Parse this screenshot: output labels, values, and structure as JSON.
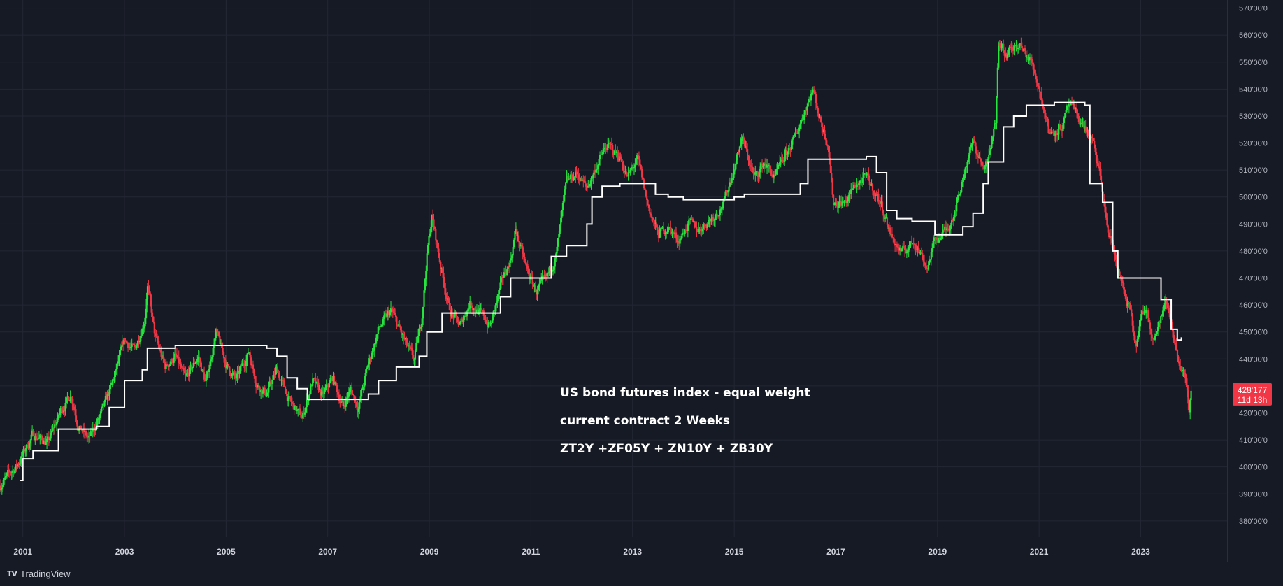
{
  "colors": {
    "background": "#161a25",
    "grid": "#232734",
    "up": "#27e53f",
    "down": "#f23645",
    "stop_line": "#ffffff",
    "axis_text": "#b2b5be",
    "price_tag": "#f23645"
  },
  "annotations": [
    "US bond futures index - equal weight",
    "current contract 2 Weeks",
    "ZT2Y +ZF05Y + ZN10Y + ZB30Y"
  ],
  "price_tag": {
    "value": "428'177",
    "countdown": "11d 13h"
  },
  "footer": {
    "icon": "tradingview-logo-icon",
    "brand_icon_text": "TV",
    "brand": "TradingView"
  },
  "chart_data": {
    "type": "candlestick",
    "title": "",
    "xlabel": "",
    "ylabel": "",
    "x_range": [
      2000.55,
      2024.7
    ],
    "ylim": [
      374,
      573
    ],
    "grid": true,
    "y_ticks": [
      {
        "value": 380,
        "label": "380'00'0"
      },
      {
        "value": 390,
        "label": "390'00'0"
      },
      {
        "value": 400,
        "label": "400'00'0"
      },
      {
        "value": 410,
        "label": "410'00'0"
      },
      {
        "value": 420,
        "label": "420'00'0"
      },
      {
        "value": 430,
        "label": "430'00'0"
      },
      {
        "value": 440,
        "label": "440'00'0"
      },
      {
        "value": 450,
        "label": "450'00'0"
      },
      {
        "value": 460,
        "label": "460'00'0"
      },
      {
        "value": 470,
        "label": "470'00'0"
      },
      {
        "value": 480,
        "label": "480'00'0"
      },
      {
        "value": 490,
        "label": "490'00'0"
      },
      {
        "value": 500,
        "label": "500'00'0"
      },
      {
        "value": 510,
        "label": "510'00'0"
      },
      {
        "value": 520,
        "label": "520'00'0"
      },
      {
        "value": 530,
        "label": "530'00'0"
      },
      {
        "value": 540,
        "label": "540'00'0"
      },
      {
        "value": 550,
        "label": "550'00'0"
      },
      {
        "value": 560,
        "label": "560'00'0"
      },
      {
        "value": 570,
        "label": "570'00'0"
      }
    ],
    "x_ticks": [
      {
        "value": 2001,
        "label": "2001"
      },
      {
        "value": 2003,
        "label": "2003"
      },
      {
        "value": 2005,
        "label": "2005"
      },
      {
        "value": 2007,
        "label": "2007"
      },
      {
        "value": 2009,
        "label": "2009"
      },
      {
        "value": 2011,
        "label": "2011"
      },
      {
        "value": 2013,
        "label": "2013"
      },
      {
        "value": 2015,
        "label": "2015"
      },
      {
        "value": 2017,
        "label": "2017"
      },
      {
        "value": 2019,
        "label": "2019"
      },
      {
        "value": 2021,
        "label": "2021"
      },
      {
        "value": 2023,
        "label": "2023"
      }
    ],
    "price_path": [
      [
        2000.55,
        393
      ],
      [
        2000.9,
        401
      ],
      [
        2001.2,
        412
      ],
      [
        2001.5,
        409
      ],
      [
        2001.75,
        421
      ],
      [
        2001.95,
        427
      ],
      [
        2002.1,
        415
      ],
      [
        2002.3,
        410
      ],
      [
        2002.6,
        422
      ],
      [
        2002.8,
        433
      ],
      [
        2003.0,
        447
      ],
      [
        2003.2,
        443
      ],
      [
        2003.4,
        455
      ],
      [
        2003.45,
        468
      ],
      [
        2003.6,
        448
      ],
      [
        2003.8,
        437
      ],
      [
        2004.0,
        441
      ],
      [
        2004.2,
        432
      ],
      [
        2004.45,
        441
      ],
      [
        2004.6,
        431
      ],
      [
        2004.8,
        450
      ],
      [
        2005.0,
        438
      ],
      [
        2005.2,
        432
      ],
      [
        2005.45,
        443
      ],
      [
        2005.6,
        431
      ],
      [
        2005.8,
        427
      ],
      [
        2006.0,
        436
      ],
      [
        2006.25,
        424
      ],
      [
        2006.5,
        418
      ],
      [
        2006.7,
        432
      ],
      [
        2006.9,
        426
      ],
      [
        2007.1,
        433
      ],
      [
        2007.3,
        422
      ],
      [
        2007.45,
        429
      ],
      [
        2007.6,
        422
      ],
      [
        2007.8,
        438
      ],
      [
        2008.0,
        451
      ],
      [
        2008.25,
        458
      ],
      [
        2008.5,
        447
      ],
      [
        2008.7,
        439
      ],
      [
        2008.85,
        455
      ],
      [
        2008.95,
        478
      ],
      [
        2009.05,
        493
      ],
      [
        2009.2,
        477
      ],
      [
        2009.4,
        458
      ],
      [
        2009.6,
        452
      ],
      [
        2009.8,
        461
      ],
      [
        2010.0,
        457
      ],
      [
        2010.2,
        452
      ],
      [
        2010.45,
        470
      ],
      [
        2010.6,
        477
      ],
      [
        2010.7,
        488
      ],
      [
        2010.9,
        474
      ],
      [
        2011.1,
        465
      ],
      [
        2011.3,
        469
      ],
      [
        2011.5,
        479
      ],
      [
        2011.7,
        505
      ],
      [
        2011.9,
        509
      ],
      [
        2012.1,
        503
      ],
      [
        2012.3,
        512
      ],
      [
        2012.5,
        519
      ],
      [
        2012.75,
        515
      ],
      [
        2012.9,
        507
      ],
      [
        2013.1,
        514
      ],
      [
        2013.3,
        497
      ],
      [
        2013.5,
        486
      ],
      [
        2013.7,
        489
      ],
      [
        2013.9,
        484
      ],
      [
        2014.1,
        490
      ],
      [
        2014.3,
        488
      ],
      [
        2014.6,
        493
      ],
      [
        2014.8,
        498
      ],
      [
        2015.0,
        511
      ],
      [
        2015.15,
        522
      ],
      [
        2015.4,
        507
      ],
      [
        2015.6,
        513
      ],
      [
        2015.8,
        507
      ],
      [
        2016.0,
        515
      ],
      [
        2016.2,
        522
      ],
      [
        2016.4,
        533
      ],
      [
        2016.55,
        540
      ],
      [
        2016.7,
        528
      ],
      [
        2016.85,
        520
      ],
      [
        2016.95,
        498
      ],
      [
        2017.2,
        498
      ],
      [
        2017.4,
        505
      ],
      [
        2017.6,
        507
      ],
      [
        2017.7,
        504
      ],
      [
        2017.9,
        497
      ],
      [
        2018.1,
        485
      ],
      [
        2018.3,
        479
      ],
      [
        2018.55,
        484
      ],
      [
        2018.8,
        474
      ],
      [
        2018.95,
        484
      ],
      [
        2019.2,
        488
      ],
      [
        2019.4,
        499
      ],
      [
        2019.6,
        515
      ],
      [
        2019.7,
        520
      ],
      [
        2019.9,
        511
      ],
      [
        2020.0,
        513
      ],
      [
        2020.15,
        528
      ],
      [
        2020.2,
        560
      ],
      [
        2020.35,
        553
      ],
      [
        2020.6,
        556
      ],
      [
        2020.85,
        550
      ],
      [
        2021.0,
        541
      ],
      [
        2021.2,
        524
      ],
      [
        2021.45,
        526
      ],
      [
        2021.6,
        534
      ],
      [
        2021.9,
        526
      ],
      [
        2022.05,
        520
      ],
      [
        2022.2,
        508
      ],
      [
        2022.35,
        488
      ],
      [
        2022.5,
        478
      ],
      [
        2022.7,
        462
      ],
      [
        2022.8,
        457
      ],
      [
        2022.9,
        444
      ],
      [
        2023.0,
        454
      ],
      [
        2023.1,
        459
      ],
      [
        2023.25,
        448
      ],
      [
        2023.35,
        452
      ],
      [
        2023.5,
        461
      ],
      [
        2023.6,
        454
      ],
      [
        2023.7,
        443
      ],
      [
        2023.85,
        434
      ],
      [
        2023.95,
        421
      ],
      [
        2024.0,
        428
      ]
    ],
    "stop_line_steps": [
      [
        2000.95,
        395
      ],
      [
        2001.0,
        403
      ],
      [
        2001.2,
        406
      ],
      [
        2001.7,
        414
      ],
      [
        2002.0,
        414
      ],
      [
        2002.25,
        414
      ],
      [
        2002.45,
        415
      ],
      [
        2002.7,
        422
      ],
      [
        2003.0,
        432
      ],
      [
        2003.35,
        436
      ],
      [
        2003.45,
        444
      ],
      [
        2004.0,
        445
      ],
      [
        2005.3,
        445
      ],
      [
        2005.8,
        444
      ],
      [
        2006.0,
        441
      ],
      [
        2006.2,
        433
      ],
      [
        2006.4,
        429
      ],
      [
        2006.6,
        425
      ],
      [
        2007.8,
        427
      ],
      [
        2008.0,
        432
      ],
      [
        2008.35,
        437
      ],
      [
        2008.8,
        441
      ],
      [
        2008.95,
        450
      ],
      [
        2009.25,
        457
      ],
      [
        2010.4,
        463
      ],
      [
        2010.6,
        470
      ],
      [
        2011.25,
        470
      ],
      [
        2011.4,
        478
      ],
      [
        2011.7,
        482
      ],
      [
        2012.1,
        490
      ],
      [
        2012.2,
        500
      ],
      [
        2012.4,
        504
      ],
      [
        2012.75,
        505
      ],
      [
        2013.0,
        505
      ],
      [
        2013.15,
        505
      ],
      [
        2013.45,
        501
      ],
      [
        2013.7,
        500
      ],
      [
        2014.0,
        499
      ],
      [
        2015.0,
        500
      ],
      [
        2015.2,
        501
      ],
      [
        2016.3,
        505
      ],
      [
        2016.45,
        514
      ],
      [
        2017.6,
        515
      ],
      [
        2017.8,
        509
      ],
      [
        2018.0,
        495
      ],
      [
        2018.2,
        492
      ],
      [
        2018.5,
        491
      ],
      [
        2018.95,
        486
      ],
      [
        2019.5,
        489
      ],
      [
        2019.7,
        494
      ],
      [
        2019.9,
        505
      ],
      [
        2020.0,
        513
      ],
      [
        2020.3,
        526
      ],
      [
        2020.5,
        530
      ],
      [
        2020.75,
        534
      ],
      [
        2021.3,
        535
      ],
      [
        2021.9,
        534
      ],
      [
        2022.0,
        505
      ],
      [
        2022.25,
        498
      ],
      [
        2022.45,
        480
      ],
      [
        2022.55,
        470
      ],
      [
        2023.2,
        470
      ],
      [
        2023.4,
        462
      ],
      [
        2023.6,
        451
      ],
      [
        2023.72,
        447
      ],
      [
        2023.8,
        448
      ]
    ],
    "last_price": 428.177
  }
}
